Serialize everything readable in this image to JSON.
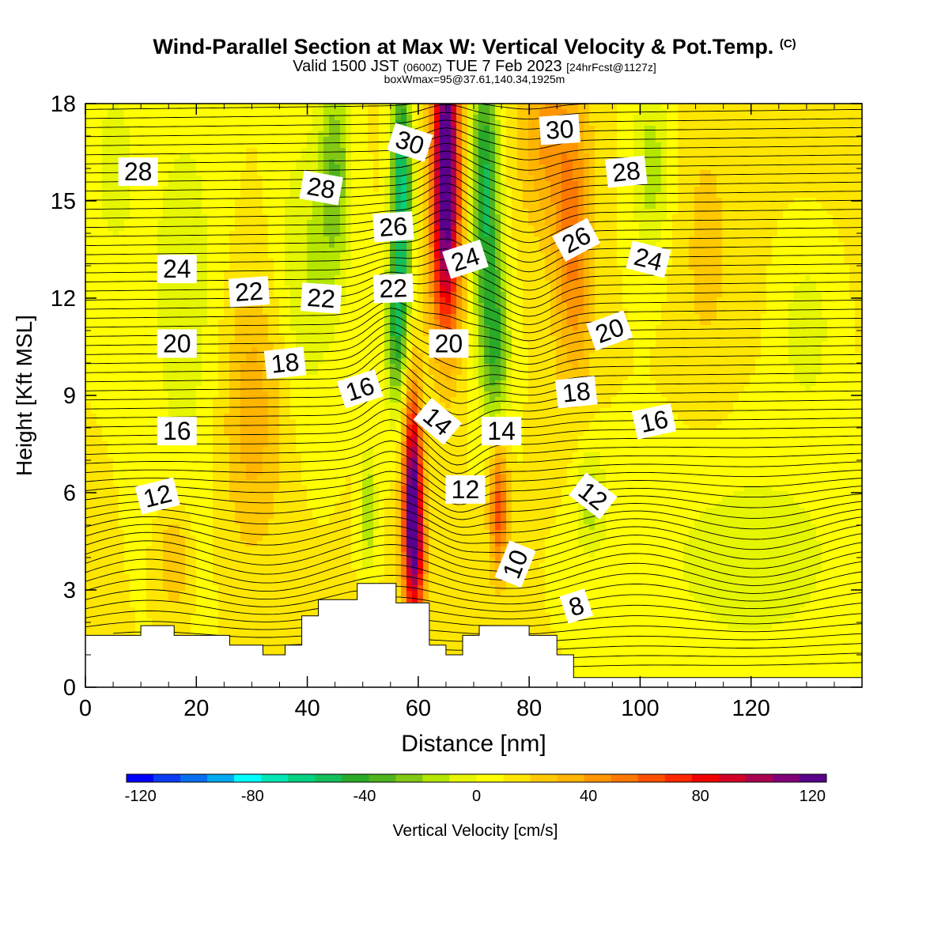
{
  "title": {
    "main": "Wind-Parallel Section at Max W: Vertical Velocity & Pot.Temp.",
    "copyright": "(C)",
    "valid_prefix": "Valid 1500 JST",
    "utc": "(0600Z)",
    "date": "TUE 7 Feb 2023",
    "forecast": "[24hrFcst@1127z]",
    "box_info": "boxWmax=95@37.61,140.34,1925m"
  },
  "chart_data": {
    "type": "heatmap",
    "xlabel": "Distance [nm]",
    "ylabel": "Height [Kft MSL]",
    "xlim": [
      0,
      140
    ],
    "ylim": [
      0,
      18
    ],
    "x_ticks": [
      0,
      20,
      40,
      60,
      80,
      100,
      120
    ],
    "y_ticks": [
      0,
      3,
      6,
      9,
      12,
      15,
      18
    ],
    "colorbar": {
      "label": "Vertical Velocity [cm/s]",
      "range": [
        -125,
        125
      ],
      "tick_values": [
        -120,
        -80,
        -40,
        0,
        40,
        80,
        120
      ],
      "tick_labels": [
        "-120",
        "-80",
        "-40",
        "0",
        "40",
        "80",
        "120"
      ],
      "colors": [
        "#0000ff",
        "#0a3cf5",
        "#0a6ef0",
        "#00aaf0",
        "#00ffff",
        "#00e6b4",
        "#00d282",
        "#14be5a",
        "#28aa28",
        "#50b41e",
        "#82c814",
        "#b4e600",
        "#e6f500",
        "#ffff00",
        "#ffe600",
        "#ffc800",
        "#ffb400",
        "#ff9600",
        "#ff7800",
        "#ff5000",
        "#ff2800",
        "#f00000",
        "#d20028",
        "#aa0050",
        "#820078",
        "#5a008c"
      ]
    },
    "theta_contour_labels": [
      {
        "value": "28",
        "x": 9.5,
        "y": 15.9,
        "rot": 0
      },
      {
        "value": "28",
        "x": 42.5,
        "y": 15.4,
        "rot": 10
      },
      {
        "value": "30",
        "x": 58.5,
        "y": 16.8,
        "rot": 18
      },
      {
        "value": "30",
        "x": 85.5,
        "y": 17.2,
        "rot": -4
      },
      {
        "value": "28",
        "x": 97.5,
        "y": 15.9,
        "rot": -6
      },
      {
        "value": "26",
        "x": 55.5,
        "y": 14.2,
        "rot": -4
      },
      {
        "value": "26",
        "x": 88.5,
        "y": 13.8,
        "rot": -28
      },
      {
        "value": "24",
        "x": 16.5,
        "y": 12.9,
        "rot": 0
      },
      {
        "value": "24",
        "x": 68.5,
        "y": 13.2,
        "rot": -18
      },
      {
        "value": "24",
        "x": 101.5,
        "y": 13.2,
        "rot": 14
      },
      {
        "value": "22",
        "x": 29.5,
        "y": 12.2,
        "rot": -4
      },
      {
        "value": "22",
        "x": 42.5,
        "y": 12.0,
        "rot": 4
      },
      {
        "value": "22",
        "x": 55.5,
        "y": 12.3,
        "rot": -2
      },
      {
        "value": "20",
        "x": 16.5,
        "y": 10.6,
        "rot": 0
      },
      {
        "value": "20",
        "x": 65.5,
        "y": 10.6,
        "rot": 0
      },
      {
        "value": "20",
        "x": 94.5,
        "y": 11.0,
        "rot": -20
      },
      {
        "value": "18",
        "x": 36.0,
        "y": 10.0,
        "rot": -6
      },
      {
        "value": "18",
        "x": 88.5,
        "y": 9.1,
        "rot": -6
      },
      {
        "value": "16",
        "x": 49.5,
        "y": 9.2,
        "rot": -18
      },
      {
        "value": "16",
        "x": 16.5,
        "y": 7.9,
        "rot": 0
      },
      {
        "value": "16",
        "x": 102.5,
        "y": 8.2,
        "rot": -12
      },
      {
        "value": "14",
        "x": 63.5,
        "y": 8.2,
        "rot": 40
      },
      {
        "value": "14",
        "x": 75.0,
        "y": 7.9,
        "rot": 0
      },
      {
        "value": "12",
        "x": 13.0,
        "y": 5.9,
        "rot": -14
      },
      {
        "value": "12",
        "x": 68.5,
        "y": 6.1,
        "rot": 0
      },
      {
        "value": "12",
        "x": 91.5,
        "y": 5.9,
        "rot": 38
      },
      {
        "value": "10",
        "x": 77.5,
        "y": 3.8,
        "rot": -68
      },
      {
        "value": "8",
        "x": 88.5,
        "y": 2.5,
        "rot": -18
      }
    ],
    "terrain_profile_kft": [
      [
        0,
        1.6
      ],
      [
        10,
        1.6
      ],
      [
        10,
        1.9
      ],
      [
        16,
        1.9
      ],
      [
        16,
        1.6
      ],
      [
        26,
        1.6
      ],
      [
        26,
        1.3
      ],
      [
        32,
        1.3
      ],
      [
        32,
        1.0
      ],
      [
        36,
        1.0
      ],
      [
        36,
        1.3
      ],
      [
        39,
        1.3
      ],
      [
        39,
        2.2
      ],
      [
        42,
        2.2
      ],
      [
        42,
        2.7
      ],
      [
        49,
        2.7
      ],
      [
        49,
        3.2
      ],
      [
        56,
        3.2
      ],
      [
        56,
        2.6
      ],
      [
        62,
        2.6
      ],
      [
        62,
        1.3
      ],
      [
        65,
        1.3
      ],
      [
        65,
        1.0
      ],
      [
        68,
        1.0
      ],
      [
        68,
        1.6
      ],
      [
        71,
        1.6
      ],
      [
        71,
        1.9
      ],
      [
        80,
        1.9
      ],
      [
        80,
        1.6
      ],
      [
        85,
        1.6
      ],
      [
        85,
        1.0
      ],
      [
        88,
        1.0
      ],
      [
        88,
        0.3
      ],
      [
        140,
        0.3
      ]
    ],
    "w_features_cm_s": [
      {
        "x": 59.0,
        "y": 6.0,
        "sx": 1.2,
        "sy": 2.2,
        "amp": 110
      },
      {
        "x": 59.5,
        "y": 3.8,
        "sx": 1.5,
        "sy": 1.5,
        "amp": 45
      },
      {
        "x": 65.0,
        "y": 17.0,
        "sx": 1.7,
        "sy": 2.6,
        "amp": 110
      },
      {
        "x": 65.0,
        "y": 13.0,
        "sx": 2.0,
        "sy": 2.2,
        "amp": 60
      },
      {
        "x": 74.5,
        "y": 5.6,
        "sx": 1.2,
        "sy": 1.5,
        "amp": 55
      },
      {
        "x": 57.0,
        "y": 15.5,
        "sx": 1.3,
        "sy": 2.8,
        "amp": -70
      },
      {
        "x": 56.0,
        "y": 11.0,
        "sx": 1.4,
        "sy": 1.8,
        "amp": -45
      },
      {
        "x": 72.0,
        "y": 15.5,
        "sx": 1.8,
        "sy": 3.0,
        "amp": -60
      },
      {
        "x": 74.0,
        "y": 10.5,
        "sx": 1.8,
        "sy": 2.0,
        "amp": -45
      },
      {
        "x": 45.0,
        "y": 16.0,
        "sx": 2.0,
        "sy": 2.2,
        "amp": -35
      },
      {
        "x": 51.0,
        "y": 5.5,
        "sx": 1.0,
        "sy": 1.3,
        "amp": -30
      },
      {
        "x": 91.0,
        "y": 5.8,
        "sx": 2.0,
        "sy": 1.2,
        "amp": -25
      },
      {
        "x": 102.0,
        "y": 16.0,
        "sx": 2.5,
        "sy": 2.0,
        "amp": -25
      },
      {
        "x": 88.0,
        "y": 13.5,
        "sx": 2.5,
        "sy": 3.0,
        "amp": 40
      },
      {
        "x": 83.0,
        "y": 17.0,
        "sx": 3.5,
        "sy": 2.0,
        "amp": 30
      },
      {
        "x": 30.0,
        "y": 8.5,
        "sx": 4.0,
        "sy": 3.0,
        "amp": 25
      },
      {
        "x": 16.0,
        "y": 4.0,
        "sx": 2.0,
        "sy": 1.2,
        "amp": 22
      },
      {
        "x": 40.0,
        "y": 13.0,
        "sx": 4.0,
        "sy": 3.0,
        "amp": -20
      },
      {
        "x": 18.0,
        "y": 12.0,
        "sx": 5.0,
        "sy": 5.0,
        "amp": -15
      },
      {
        "x": 120.0,
        "y": 4.0,
        "sx": 14.0,
        "sy": 2.5,
        "amp": -15
      },
      {
        "x": 130.0,
        "y": 11.0,
        "sx": 3.0,
        "sy": 1.5,
        "amp": -18
      },
      {
        "x": 112.0,
        "y": 13.5,
        "sx": 4.0,
        "sy": 3.5,
        "amp": 12
      },
      {
        "x": 5.0,
        "y": 16.0,
        "sx": 4.0,
        "sy": 3.0,
        "amp": -12
      }
    ]
  }
}
